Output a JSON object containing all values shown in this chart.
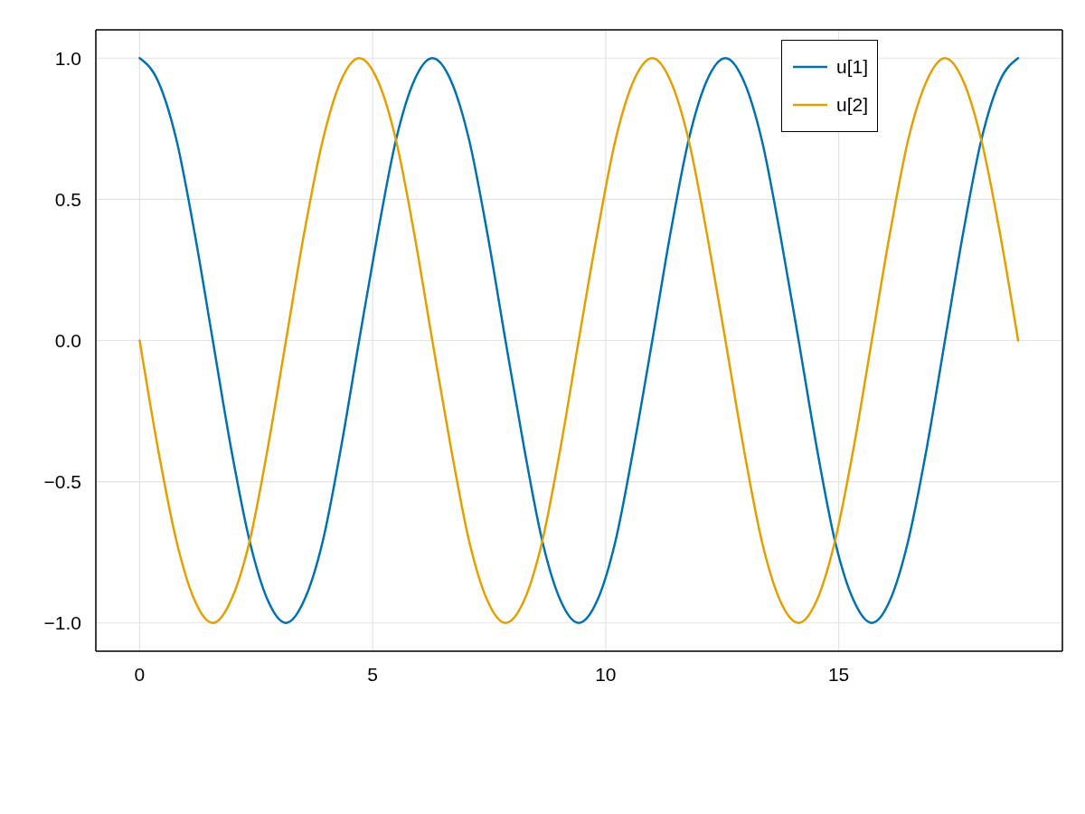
{
  "chart_data": {
    "type": "line",
    "x": [
      0,
      0.39,
      0.79,
      1.18,
      1.57,
      1.96,
      2.36,
      2.75,
      3.14,
      3.53,
      3.93,
      4.32,
      4.71,
      5.11,
      5.5,
      5.89,
      6.28,
      6.68,
      7.07,
      7.46,
      7.85,
      8.25,
      8.64,
      9.03,
      9.42,
      9.82,
      10.21,
      10.6,
      11,
      11.39,
      11.78,
      12.17,
      12.57,
      12.96,
      13.35,
      13.74,
      14.14,
      14.53,
      14.92,
      15.32,
      15.71,
      16.1,
      16.49,
      16.89,
      17.28,
      17.67,
      18.06,
      18.46,
      18.85
    ],
    "series": [
      {
        "name": "u[1]",
        "color": "#0072b2",
        "values": [
          1,
          0.92,
          0.71,
          0.38,
          0,
          -0.38,
          -0.71,
          -0.92,
          -1,
          -0.92,
          -0.71,
          -0.38,
          0,
          0.38,
          0.71,
          0.92,
          1,
          0.92,
          0.71,
          0.38,
          0,
          -0.38,
          -0.71,
          -0.92,
          -1,
          -0.92,
          -0.71,
          -0.38,
          0,
          0.38,
          0.71,
          0.92,
          1,
          0.92,
          0.71,
          0.38,
          0,
          -0.38,
          -0.71,
          -0.92,
          -1,
          -0.92,
          -0.71,
          -0.38,
          0,
          0.38,
          0.71,
          0.92,
          1
        ]
      },
      {
        "name": "u[2]",
        "color": "#e69f00",
        "values": [
          0,
          -0.38,
          -0.71,
          -0.92,
          -1,
          -0.92,
          -0.71,
          -0.38,
          0,
          0.38,
          0.71,
          0.92,
          1,
          0.92,
          0.71,
          0.38,
          0,
          -0.38,
          -0.71,
          -0.92,
          -1,
          -0.92,
          -0.71,
          -0.38,
          0,
          0.38,
          0.71,
          0.92,
          1,
          0.92,
          0.71,
          0.38,
          0,
          -0.38,
          -0.71,
          -0.92,
          -1,
          -0.92,
          -0.71,
          -0.38,
          0,
          0.38,
          0.71,
          0.92,
          1,
          0.92,
          0.71,
          0.38,
          0
        ]
      }
    ],
    "xlim": [
      -0.94,
      19.8
    ],
    "xticks": [
      0,
      5,
      10,
      15
    ],
    "ylim": [
      -1.1,
      1.1
    ],
    "yticks": [
      {
        "value": -1,
        "label": "−1.0"
      },
      {
        "value": -0.5,
        "label": "−0.5"
      },
      {
        "value": 0,
        "label": "0.0"
      },
      {
        "value": 0.5,
        "label": "0.5"
      },
      {
        "value": 1,
        "label": "1.0"
      }
    ],
    "grid": true,
    "legend": "top right",
    "marker": "none",
    "line_style": "solid"
  }
}
